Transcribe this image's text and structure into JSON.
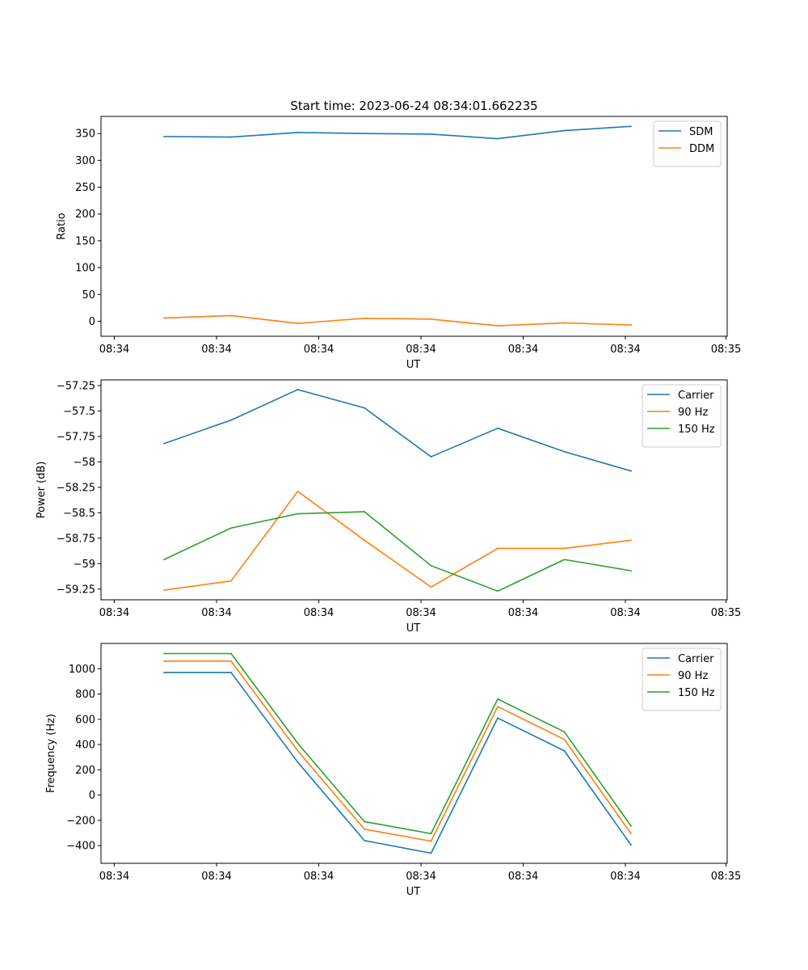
{
  "title": "Start time: 2023-06-24 08:34:01.662235",
  "colors": {
    "blue": "#1f77b4",
    "orange": "#ff7f0e",
    "green": "#2ca02c"
  },
  "chart_data": [
    {
      "type": "line",
      "xlabel": "UT",
      "ylabel": "Ratio",
      "x_tick_labels": [
        "08:34",
        "08:34",
        "08:34",
        "08:34",
        "08:34",
        "08:34",
        "08:35"
      ],
      "ylim": [
        -28,
        382
      ],
      "y_ticks": [
        0,
        50,
        100,
        150,
        200,
        250,
        300,
        350
      ],
      "legend": "top-right",
      "grid": false,
      "series": [
        {
          "name": "SDM",
          "color": "#1f77b4",
          "values": [
            344.5,
            343.5,
            352,
            350,
            349,
            340.5,
            355.5,
            363.5
          ]
        },
        {
          "name": "DDM",
          "color": "#ff7f0e",
          "values": [
            6,
            10.5,
            -4,
            5.5,
            4,
            -8.5,
            -3,
            -7
          ]
        }
      ]
    },
    {
      "type": "line",
      "xlabel": "UT",
      "ylabel": "Power (dB)",
      "x_tick_labels": [
        "08:34",
        "08:34",
        "08:34",
        "08:34",
        "08:34",
        "08:34",
        "08:35"
      ],
      "ylim": [
        -59.355,
        -57.195
      ],
      "y_ticks": [
        -59.25,
        -59.0,
        -58.75,
        -58.5,
        -58.25,
        -58.0,
        -57.75,
        -57.5,
        -57.25
      ],
      "legend": "top-right",
      "grid": false,
      "series": [
        {
          "name": "Carrier",
          "color": "#1f77b4",
          "values": [
            -57.82,
            -57.59,
            -57.29,
            -57.47,
            -57.95,
            -57.67,
            -57.9,
            -58.09
          ]
        },
        {
          "name": "90 Hz",
          "color": "#ff7f0e",
          "values": [
            -59.26,
            -59.17,
            -58.29,
            -58.77,
            -59.23,
            -58.85,
            -58.85,
            -58.77
          ]
        },
        {
          "name": "150 Hz",
          "color": "#2ca02c",
          "values": [
            -58.96,
            -58.65,
            -58.51,
            -58.49,
            -59.02,
            -59.27,
            -58.96,
            -59.07
          ]
        }
      ]
    },
    {
      "type": "line",
      "xlabel": "UT",
      "ylabel": "Frequency (Hz)",
      "x_tick_labels": [
        "08:34",
        "08:34",
        "08:34",
        "08:34",
        "08:34",
        "08:34",
        "08:35"
      ],
      "ylim": [
        -540,
        1200
      ],
      "y_ticks": [
        -400,
        -200,
        0,
        200,
        400,
        600,
        800,
        1000
      ],
      "legend": "top-right",
      "grid": false,
      "series": [
        {
          "name": "Carrier",
          "color": "#1f77b4",
          "values": [
            970,
            970,
            260,
            -360,
            -460,
            610,
            350,
            -395
          ]
        },
        {
          "name": "90 Hz",
          "color": "#ff7f0e",
          "values": [
            1060,
            1060,
            350,
            -270,
            -365,
            700,
            440,
            -305
          ]
        },
        {
          "name": "150 Hz",
          "color": "#2ca02c",
          "values": [
            1120,
            1120,
            410,
            -210,
            -305,
            760,
            500,
            -245
          ]
        }
      ]
    }
  ]
}
